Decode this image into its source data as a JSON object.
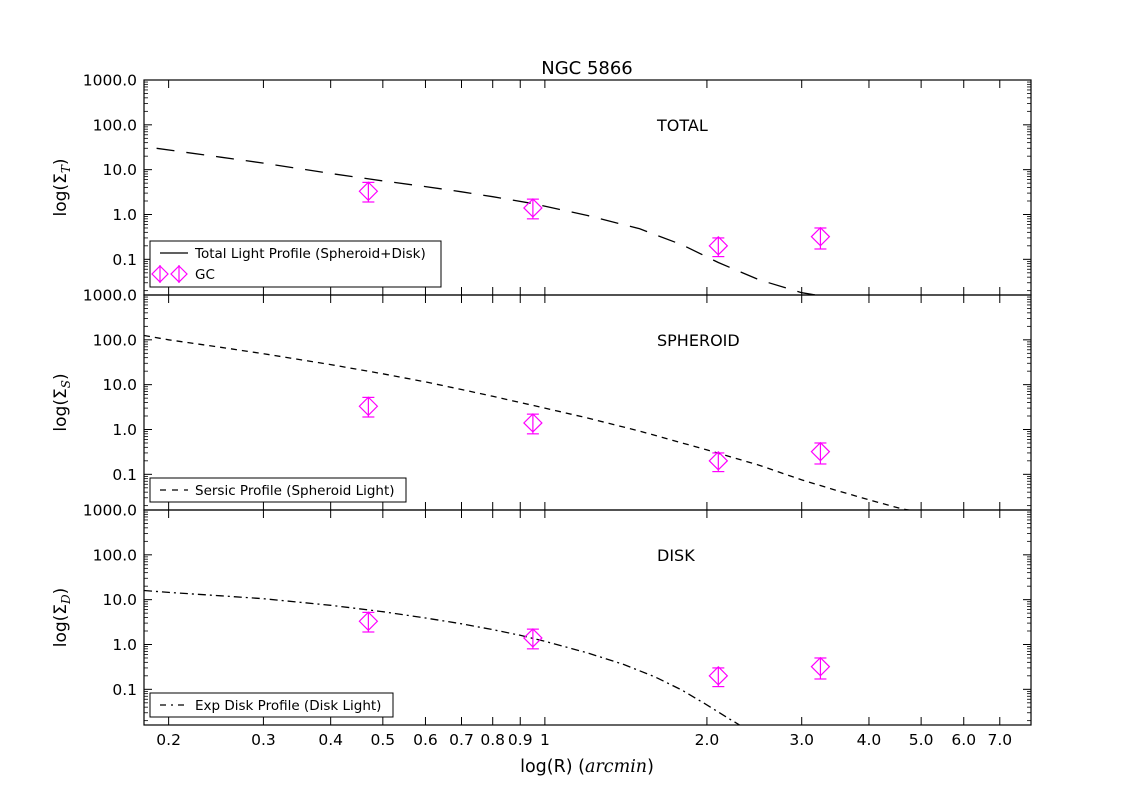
{
  "chart_data": {
    "type": "line",
    "title": "NGC 5866",
    "xlabel": "log(R)",
    "xlabel_unit": "arcmin",
    "xscale": "log",
    "xlim": [
      0.18,
      8.0
    ],
    "x_ticks": [
      0.2,
      0.3,
      0.4,
      0.5,
      0.6,
      0.7,
      0.8,
      0.9,
      1,
      2.0,
      3.0,
      4.0,
      5.0,
      6.0,
      7.0
    ],
    "x_tick_labels": [
      "0.2",
      "0.3",
      "0.4",
      "0.5",
      "0.6",
      "0.7",
      "0.8",
      "0.9",
      "1",
      "2.0",
      "3.0",
      "4.0",
      "5.0",
      "6.0",
      "7.0"
    ],
    "yscale": "log",
    "ylim": [
      0.016,
      1000
    ],
    "y_ticks": [
      0.1,
      1,
      10,
      100,
      1000
    ],
    "y_tick_labels": [
      "0.1",
      "1.0",
      "10.0",
      "100.0",
      "1000.0"
    ],
    "gc_points": {
      "name": "GC",
      "color": "#ff00ff",
      "x": [
        0.47,
        0.95,
        2.1,
        3.25
      ],
      "y": [
        3.3,
        1.4,
        0.2,
        0.32
      ],
      "y_err_low": [
        1.9,
        0.8,
        0.115,
        0.17
      ],
      "y_err_high": [
        5.2,
        2.2,
        0.3,
        0.5
      ]
    },
    "panels": [
      {
        "label": "TOTAL",
        "ylabel": "log(",
        "ylabel_sub": "T",
        "legend": [
          "Total Light Profile (Spheroid+Disk)",
          "GC"
        ],
        "line_style": "long-dash",
        "model": {
          "x": [
            0.19,
            0.25,
            0.3,
            0.4,
            0.5,
            0.6,
            0.7,
            0.8,
            0.95,
            1.2,
            1.5,
            1.8,
            2.1,
            2.5,
            3.0,
            3.3
          ],
          "y": [
            30,
            19,
            14,
            8.2,
            5.6,
            4.2,
            3.2,
            2.5,
            1.75,
            0.95,
            0.48,
            0.21,
            0.085,
            0.035,
            0.018,
            0.015
          ]
        }
      },
      {
        "label": "SPHEROID",
        "ylabel": "log(",
        "ylabel_sub": "S",
        "legend": [
          "Sersic Profile (Spheroid Light)"
        ],
        "line_style": "short-dash",
        "model": {
          "x": [
            0.18,
            0.2,
            0.25,
            0.3,
            0.4,
            0.5,
            0.6,
            0.7,
            0.8,
            1.0,
            1.2,
            1.5,
            2.0,
            2.5,
            3.0,
            3.5,
            4.0,
            4.6,
            4.9
          ],
          "y": [
            125,
            100,
            68,
            49,
            28,
            17.5,
            11.5,
            7.8,
            5.5,
            3.0,
            1.8,
            0.92,
            0.35,
            0.16,
            0.075,
            0.043,
            0.027,
            0.017,
            0.015
          ]
        }
      },
      {
        "label": "DISK",
        "ylabel": "log(",
        "ylabel_sub": "D",
        "legend": [
          "Exp Disk Profile (Disk Light)"
        ],
        "line_style": "dash-dot",
        "model": {
          "x": [
            0.18,
            0.2,
            0.25,
            0.3,
            0.4,
            0.5,
            0.6,
            0.7,
            0.8,
            0.9,
            1.0,
            1.2,
            1.4,
            1.6,
            1.8,
            2.0,
            2.2,
            2.3
          ],
          "y": [
            16,
            14.5,
            12.2,
            10.5,
            7.5,
            5.4,
            3.9,
            2.9,
            2.15,
            1.6,
            1.18,
            0.65,
            0.36,
            0.19,
            0.095,
            0.045,
            0.022,
            0.016
          ]
        }
      }
    ]
  }
}
